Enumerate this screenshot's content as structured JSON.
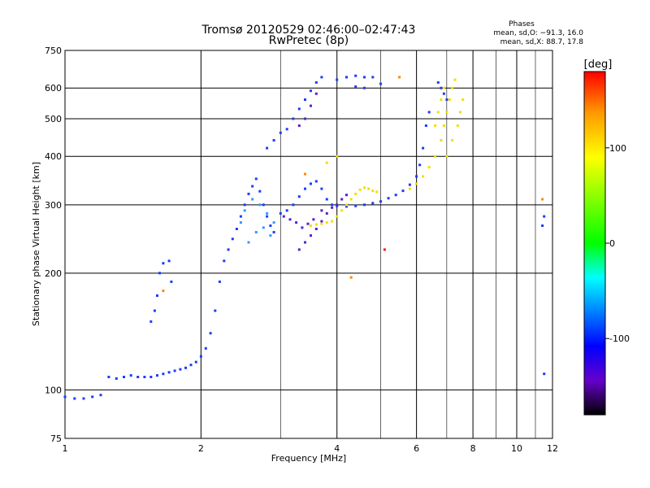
{
  "chart_data": {
    "type": "scatter",
    "title": "Tromsø 20120529 02:46:00–02:47:43",
    "subtitle": "RwPretec (8p)",
    "xlabel": "Frequency [MHz]",
    "ylabel": "Stationary phase Virtual Height [km]",
    "x_scale": "log",
    "y_scale": "log",
    "xlim": [
      1,
      12
    ],
    "ylim": [
      75,
      750
    ],
    "x_ticks": [
      1,
      2,
      4,
      6,
      8,
      10,
      12
    ],
    "y_ticks": [
      75,
      100,
      200,
      300,
      400,
      500,
      600,
      750
    ],
    "grid": true,
    "phases_box": {
      "title": "Phases",
      "line1": "mean, sd,O: −91.3, 16.0",
      "line2": "mean, sd,X:  88.7, 17.8"
    },
    "colorbar": {
      "label": "[deg]",
      "range": [
        -180,
        180
      ],
      "ticks": [
        100,
        0,
        -100
      ],
      "colors": [
        "#ff0000",
        "#ff9900",
        "#ffff00",
        "#00ff00",
        "#00ffff",
        "#0066ff",
        "#0000ff",
        "#6600cc",
        "#000000"
      ]
    },
    "series": [
      {
        "phase": -100,
        "color": "#1a3cff",
        "points": [
          [
            1.0,
            96
          ],
          [
            1.05,
            95
          ],
          [
            1.1,
            95
          ],
          [
            1.15,
            96
          ],
          [
            1.2,
            97
          ],
          [
            1.25,
            108
          ],
          [
            1.3,
            107
          ],
          [
            1.35,
            108
          ],
          [
            1.4,
            109
          ],
          [
            1.45,
            108
          ],
          [
            1.5,
            108
          ],
          [
            1.55,
            108
          ],
          [
            1.6,
            109
          ],
          [
            1.65,
            110
          ],
          [
            1.7,
            111
          ],
          [
            1.75,
            112
          ],
          [
            1.8,
            113
          ],
          [
            1.85,
            114
          ],
          [
            1.9,
            116
          ],
          [
            1.95,
            118
          ],
          [
            2.0,
            122
          ],
          [
            2.05,
            128
          ],
          [
            2.1,
            140
          ],
          [
            1.55,
            150
          ],
          [
            1.58,
            160
          ],
          [
            1.6,
            175
          ],
          [
            1.62,
            200
          ],
          [
            1.65,
            212
          ],
          [
            1.7,
            215
          ],
          [
            1.72,
            190
          ],
          [
            2.15,
            160
          ],
          [
            2.2,
            190
          ],
          [
            2.25,
            215
          ],
          [
            2.3,
            230
          ],
          [
            2.35,
            245
          ],
          [
            2.4,
            260
          ],
          [
            2.45,
            280
          ],
          [
            2.5,
            300
          ],
          [
            2.55,
            320
          ],
          [
            2.6,
            335
          ],
          [
            2.65,
            350
          ],
          [
            2.7,
            325
          ],
          [
            2.75,
            300
          ],
          [
            2.8,
            280
          ],
          [
            2.85,
            265
          ],
          [
            2.9,
            255
          ],
          [
            3.0,
            285
          ],
          [
            3.1,
            290
          ],
          [
            3.2,
            300
          ],
          [
            3.3,
            315
          ],
          [
            3.4,
            330
          ],
          [
            3.5,
            340
          ],
          [
            3.6,
            345
          ],
          [
            3.7,
            330
          ],
          [
            3.8,
            310
          ],
          [
            3.9,
            300
          ],
          [
            4.0,
            298
          ],
          [
            4.2,
            297
          ],
          [
            4.4,
            298
          ],
          [
            4.6,
            300
          ],
          [
            4.8,
            303
          ],
          [
            5.0,
            306
          ],
          [
            5.2,
            312
          ],
          [
            5.4,
            318
          ],
          [
            5.6,
            326
          ],
          [
            5.8,
            338
          ],
          [
            6.0,
            355
          ],
          [
            6.1,
            380
          ],
          [
            6.2,
            420
          ],
          [
            6.3,
            480
          ],
          [
            6.4,
            520
          ],
          [
            3.1,
            470
          ],
          [
            3.2,
            500
          ],
          [
            3.3,
            530
          ],
          [
            3.4,
            560
          ],
          [
            3.5,
            590
          ],
          [
            3.6,
            620
          ],
          [
            3.7,
            640
          ],
          [
            4.0,
            630
          ],
          [
            4.2,
            640
          ],
          [
            4.4,
            645
          ],
          [
            4.6,
            640
          ],
          [
            4.8,
            640
          ],
          [
            5.0,
            615
          ],
          [
            4.4,
            605
          ],
          [
            4.6,
            600
          ],
          [
            2.8,
            420
          ],
          [
            2.9,
            440
          ],
          [
            3.0,
            460
          ],
          [
            6.7,
            620
          ],
          [
            6.8,
            600
          ],
          [
            6.9,
            580
          ],
          [
            7.0,
            560
          ],
          [
            11.5,
            110
          ],
          [
            11.5,
            280
          ],
          [
            11.4,
            265
          ]
        ]
      },
      {
        "phase": -120,
        "color": "#5522cc",
        "points": [
          [
            3.05,
            280
          ],
          [
            3.15,
            275
          ],
          [
            3.25,
            270
          ],
          [
            3.35,
            262
          ],
          [
            3.45,
            268
          ],
          [
            3.55,
            275
          ],
          [
            3.7,
            290
          ],
          [
            3.3,
            230
          ],
          [
            3.4,
            240
          ],
          [
            3.5,
            250
          ],
          [
            3.6,
            260
          ],
          [
            3.7,
            272
          ],
          [
            3.8,
            285
          ],
          [
            3.9,
            295
          ],
          [
            4.0,
            300
          ],
          [
            4.1,
            310
          ],
          [
            4.2,
            318
          ],
          [
            3.3,
            480
          ],
          [
            3.4,
            500
          ],
          [
            3.5,
            540
          ],
          [
            3.6,
            580
          ]
        ]
      },
      {
        "phase": -60,
        "color": "#3399ff",
        "points": [
          [
            2.45,
            270
          ],
          [
            2.5,
            290
          ],
          [
            2.6,
            310
          ],
          [
            2.7,
            300
          ],
          [
            2.8,
            285
          ],
          [
            2.9,
            270
          ],
          [
            2.55,
            240
          ],
          [
            2.65,
            255
          ],
          [
            2.75,
            262
          ],
          [
            2.85,
            250
          ]
        ]
      },
      {
        "phase": 100,
        "color": "#f0e000",
        "points": [
          [
            3.5,
            265
          ],
          [
            3.6,
            267
          ],
          [
            3.7,
            268
          ],
          [
            3.8,
            270
          ],
          [
            3.9,
            272
          ],
          [
            4.0,
            280
          ],
          [
            4.1,
            290
          ],
          [
            4.2,
            300
          ],
          [
            4.3,
            310
          ],
          [
            4.4,
            320
          ],
          [
            4.5,
            328
          ],
          [
            4.6,
            332
          ],
          [
            4.7,
            330
          ],
          [
            4.8,
            326
          ],
          [
            4.9,
            324
          ],
          [
            5.8,
            330
          ],
          [
            6.0,
            340
          ],
          [
            6.2,
            355
          ],
          [
            6.4,
            375
          ],
          [
            6.6,
            400
          ],
          [
            6.8,
            440
          ],
          [
            6.9,
            480
          ],
          [
            7.0,
            520
          ],
          [
            7.1,
            560
          ],
          [
            7.2,
            600
          ],
          [
            7.3,
            630
          ],
          [
            7.0,
            400
          ],
          [
            7.2,
            440
          ],
          [
            7.4,
            480
          ],
          [
            7.5,
            520
          ],
          [
            7.6,
            560
          ],
          [
            6.6,
            480
          ],
          [
            6.7,
            520
          ],
          [
            6.8,
            560
          ],
          [
            6.9,
            600
          ],
          [
            3.8,
            385
          ],
          [
            4.0,
            400
          ]
        ]
      },
      {
        "phase": 150,
        "color": "#ff8800",
        "points": [
          [
            1.65,
            180
          ],
          [
            5.5,
            640
          ],
          [
            11.4,
            310
          ],
          [
            4.3,
            195
          ],
          [
            3.4,
            360
          ]
        ]
      },
      {
        "phase": 175,
        "color": "#ff1a1a",
        "points": [
          [
            5.1,
            230
          ]
        ]
      }
    ]
  }
}
